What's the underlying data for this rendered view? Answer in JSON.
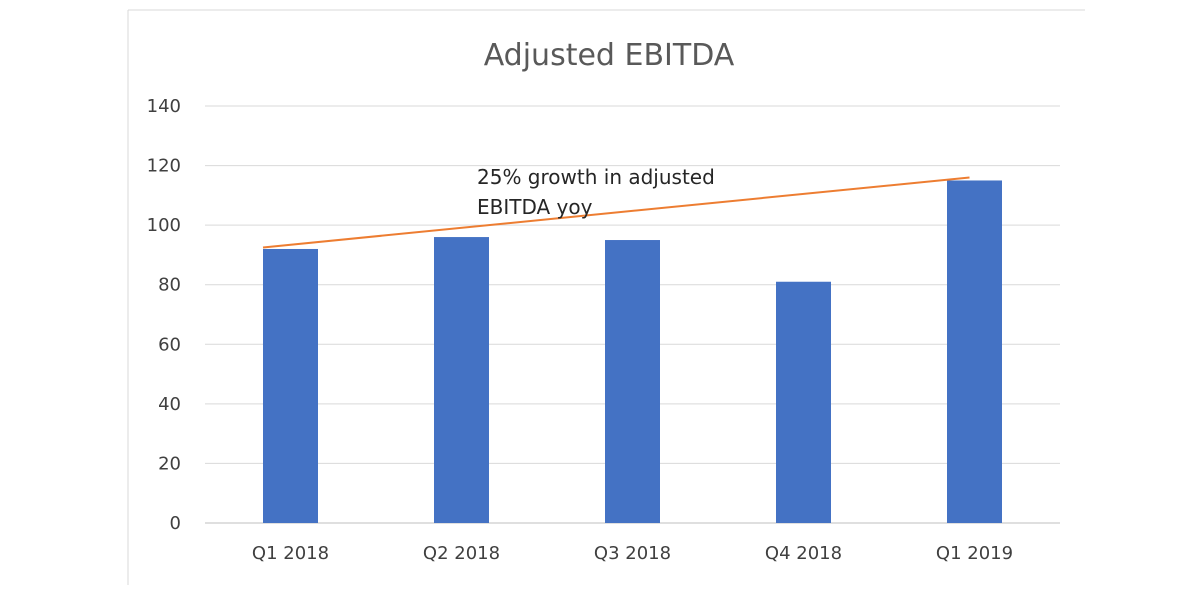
{
  "chart_data": {
    "type": "bar",
    "title": "Adjusted EBITDA",
    "categories": [
      "Q1 2018",
      "Q2 2018",
      "Q3 2018",
      "Q4 2018",
      "Q1 2019"
    ],
    "series": [
      {
        "name": "Adjusted EBITDA",
        "values": [
          92,
          96,
          95,
          81,
          115
        ]
      }
    ],
    "xlabel": "",
    "ylabel": "",
    "ylim": [
      0,
      140
    ],
    "yticks": [
      0,
      20,
      40,
      60,
      80,
      100,
      120,
      140
    ],
    "ytick_labels": [
      "0",
      "20",
      "40",
      "60",
      "80",
      "100",
      "120",
      "140"
    ],
    "grid": true,
    "legend": "none",
    "trendline": {
      "from_category": "Q1 2018",
      "to_category": "Q1 2019",
      "start_value": 92.5,
      "end_value": 116
    },
    "annotation": {
      "lines": [
        "25% growth in adjusted",
        "EBITDA yoy"
      ]
    },
    "colors": {
      "bar": "#4472c4",
      "trendline": "#ed7d31",
      "grid": "#d9d9d9",
      "axis": "#bfbfbf",
      "frame": "#d9d9d9"
    }
  }
}
